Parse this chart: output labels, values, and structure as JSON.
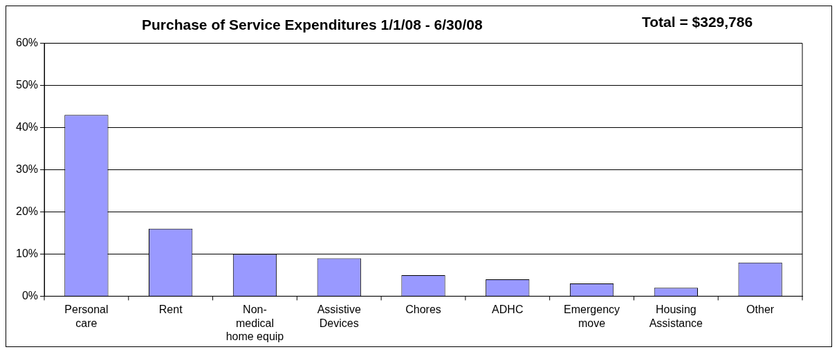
{
  "chart_data": {
    "type": "bar",
    "title": "Purchase of Service Expenditures 1/1/08 - 6/30/08",
    "annotations": [
      "Total = $329,786"
    ],
    "categories": [
      "Personal care",
      "Rent",
      "Non-medical home equip",
      "Assistive Devices",
      "Chores",
      "ADHC",
      "Emergency move",
      "Housing Assistance",
      "Other"
    ],
    "values": [
      43,
      16,
      10,
      9,
      5,
      4,
      3,
      2,
      8
    ],
    "color": "#9999ff",
    "ylim": [
      0,
      60
    ],
    "yticks": [
      {
        "value": 0,
        "label": "0%"
      },
      {
        "value": 10,
        "label": "10%"
      },
      {
        "value": 20,
        "label": "20%"
      },
      {
        "value": 30,
        "label": "30%"
      },
      {
        "value": 40,
        "label": "40%"
      },
      {
        "value": 50,
        "label": "50%"
      },
      {
        "value": 60,
        "label": "60%"
      }
    ],
    "grid": "y",
    "legend": false
  }
}
